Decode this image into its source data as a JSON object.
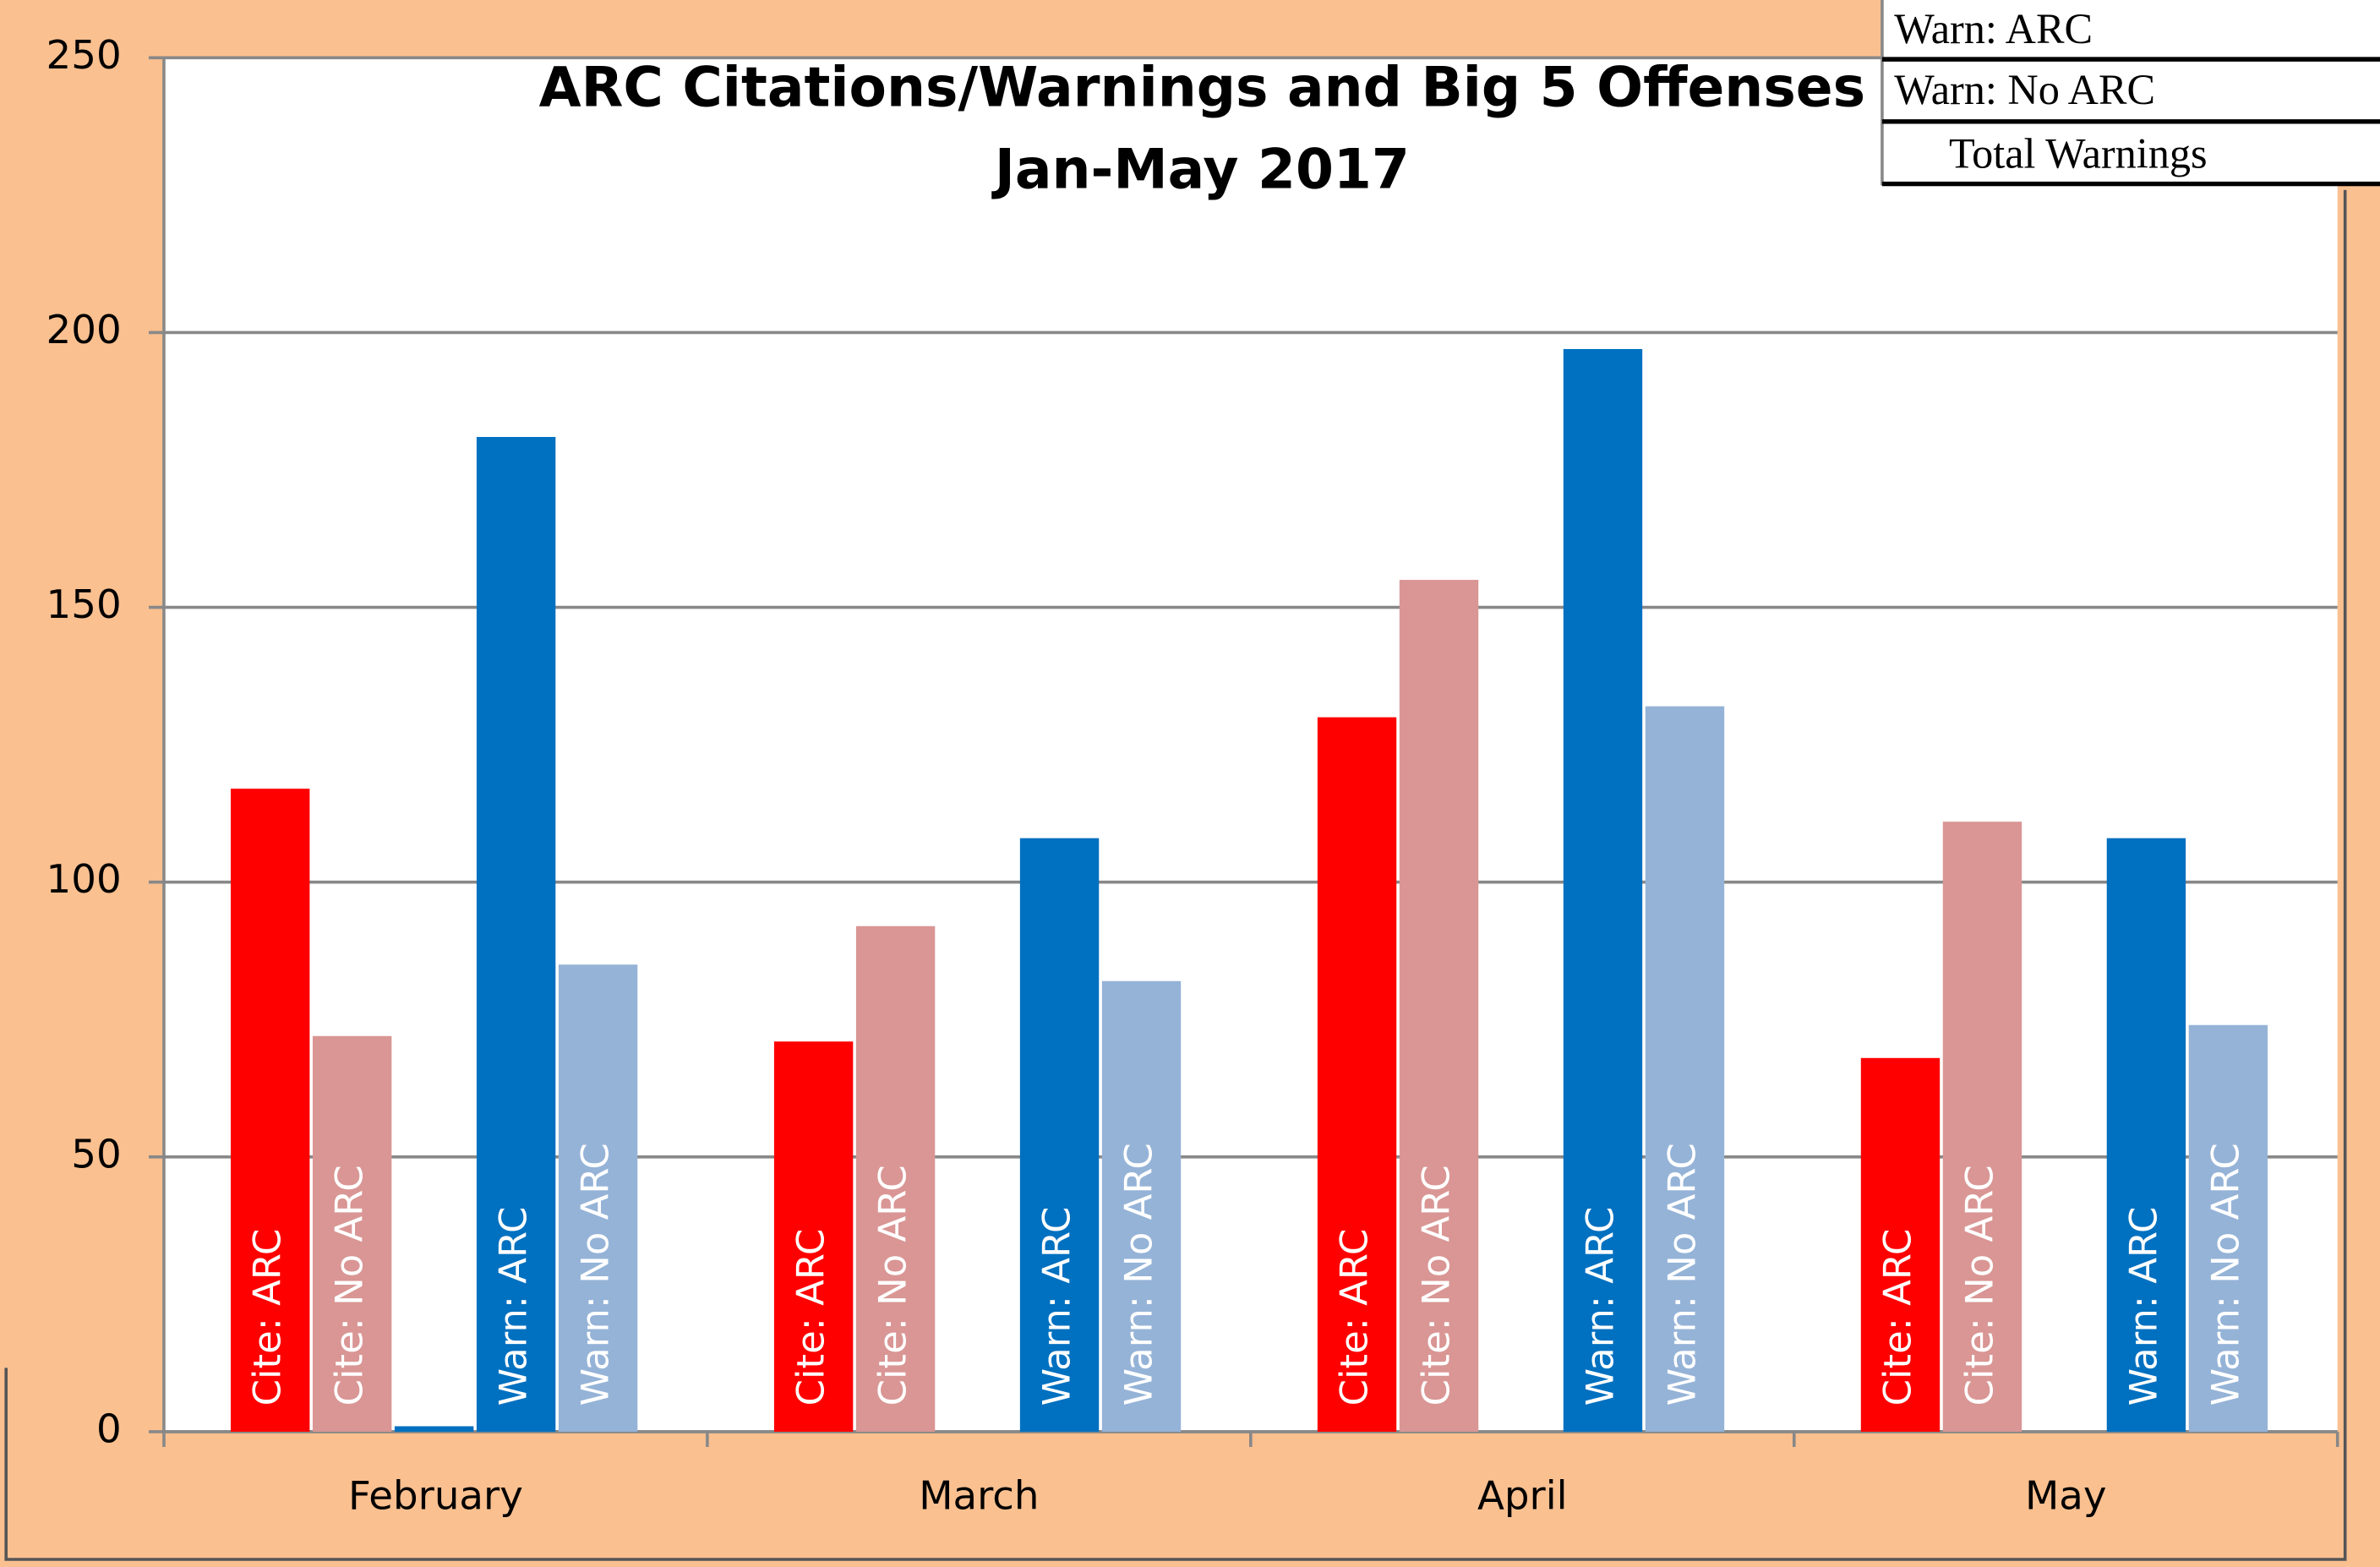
{
  "chart_data": {
    "type": "bar",
    "title": "ARC Citations/Warnings and Big 5 Offenses",
    "subtitle": "Jan-May 2017",
    "categories": [
      "February",
      "March",
      "April",
      "May"
    ],
    "series": [
      {
        "name": "Cite: ARC",
        "color": "#ff0000",
        "values": [
          117,
          71,
          130,
          68
        ]
      },
      {
        "name": "Cite: No ARC",
        "color": "#d99694",
        "values": [
          72,
          92,
          155,
          111
        ]
      },
      {
        "color": "#0070c0",
        "values": [
          1,
          0,
          0,
          0
        ]
      },
      {
        "name": "Warn: ARC",
        "color": "#0070c0",
        "values": [
          181,
          108,
          197,
          108
        ]
      },
      {
        "name": "Warn: No ARC",
        "color": "#95b3d7",
        "values": [
          85,
          82,
          132,
          74
        ]
      }
    ],
    "ylim": [
      0,
      250
    ],
    "yticks": [
      0,
      50,
      100,
      150,
      200,
      250
    ],
    "grid": true
  },
  "table": {
    "rows": [
      "Warn: ARC",
      "Warn: No ARC",
      "Total Warnings"
    ]
  }
}
